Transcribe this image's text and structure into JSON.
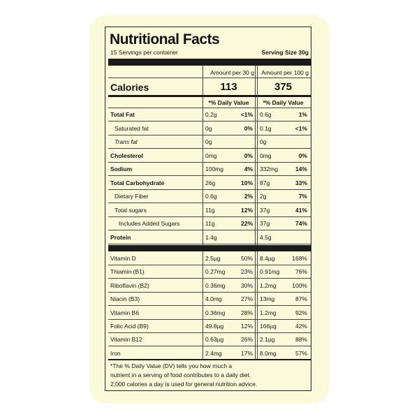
{
  "header": {
    "title": "Nutritional Facts",
    "servings": "15 Servings per container",
    "serving_size": "Serving Size 30g"
  },
  "columns": [
    "Amount per 30 g",
    "Amount per 100 g"
  ],
  "calories": {
    "label": "Calories",
    "values": [
      "113",
      "375"
    ]
  },
  "daily_value_header": [
    "*% Daily Value",
    "*% Daily Value"
  ],
  "nutrients": [
    {
      "name": "Total Fat",
      "amount_30g": "0.2g",
      "dv_30g": "<1%",
      "amount_100g": "0.6g",
      "dv_100g": "1%"
    },
    {
      "name": "Saturated fat",
      "amount_30g": "0g",
      "dv_30g": "0%",
      "amount_100g": "0.1g",
      "dv_100g": "<1%"
    },
    {
      "name": "Trans fat",
      "amount_30g": "0g",
      "amount_100g": "0g"
    },
    {
      "name": "Cholesterol",
      "amount_30g": "0mg",
      "dv_30g": "0%",
      "amount_100g": "0mg",
      "dv_100g": "0%"
    },
    {
      "name": "Sodium",
      "amount_30g": "100mg",
      "dv_30g": "4%",
      "amount_100g": "332mg",
      "dv_100g": "14%"
    },
    {
      "name": "Total Carbohydrate",
      "amount_30g": "26g",
      "dv_30g": "10%",
      "amount_100g": "87g",
      "dv_100g": "33%"
    },
    {
      "name": "Dietary Fiber",
      "amount_30g": "0.6g",
      "dv_30g": "2%",
      "amount_100g": "2g",
      "dv_100g": "7%"
    },
    {
      "name": "Total sugars",
      "amount_30g": "11g",
      "dv_30g": "12%",
      "amount_100g": "37g",
      "dv_100g": "41%"
    },
    {
      "name": "Includes Added Sugars",
      "amount_30g": "11g",
      "dv_30g": "22%",
      "amount_100g": "37g",
      "dv_100g": "74%"
    },
    {
      "name": "Protein",
      "amount_30g": "1.4g",
      "amount_100g": "4.5g"
    }
  ],
  "vitamins": [
    {
      "name": "Vitamin D",
      "amount_30g": "2.5µg",
      "dv_30g": "50%",
      "amount_100g": "8.4µg",
      "dv_100g": "168%"
    },
    {
      "name": "Thiamin (B1)",
      "amount_30g": "0.27mg",
      "dv_30g": "23%",
      "amount_100g": "0.91mg",
      "dv_100g": "76%"
    },
    {
      "name": "Riboflavin (B2)",
      "amount_30g": "0.36mg",
      "dv_30g": "30%",
      "amount_100g": "1.2mg",
      "dv_100g": "100%"
    },
    {
      "name": "Niacin (B3)",
      "amount_30g": "4.0mg",
      "dv_30g": "27%",
      "amount_100g": "13mg",
      "dv_100g": "87%"
    },
    {
      "name": "Vitamin B6",
      "amount_30g": "0.36mg",
      "dv_30g": "28%",
      "amount_100g": "1.2mg",
      "dv_100g": "92%"
    },
    {
      "name": "Folic Acid (B9)",
      "amount_30g": "49.8µg",
      "dv_30g": "12%",
      "amount_100g": "166µg",
      "dv_100g": "42%"
    },
    {
      "name": "Vitamin B12",
      "amount_30g": "0.63µg",
      "dv_30g": "26%",
      "amount_100g": "2.1µg",
      "dv_100g": "88%"
    },
    {
      "name": "Iron",
      "amount_30g": "2.4mg",
      "dv_30g": "17%",
      "amount_100g": "8.0mg",
      "dv_100g": "57%"
    }
  ],
  "footnote": [
    "*The % Daily Value (DV) tells you how much a",
    "nutrient in a serving of food contributes to a daily diet.",
    "2,000 calories a day is used for general nutrition advice."
  ]
}
